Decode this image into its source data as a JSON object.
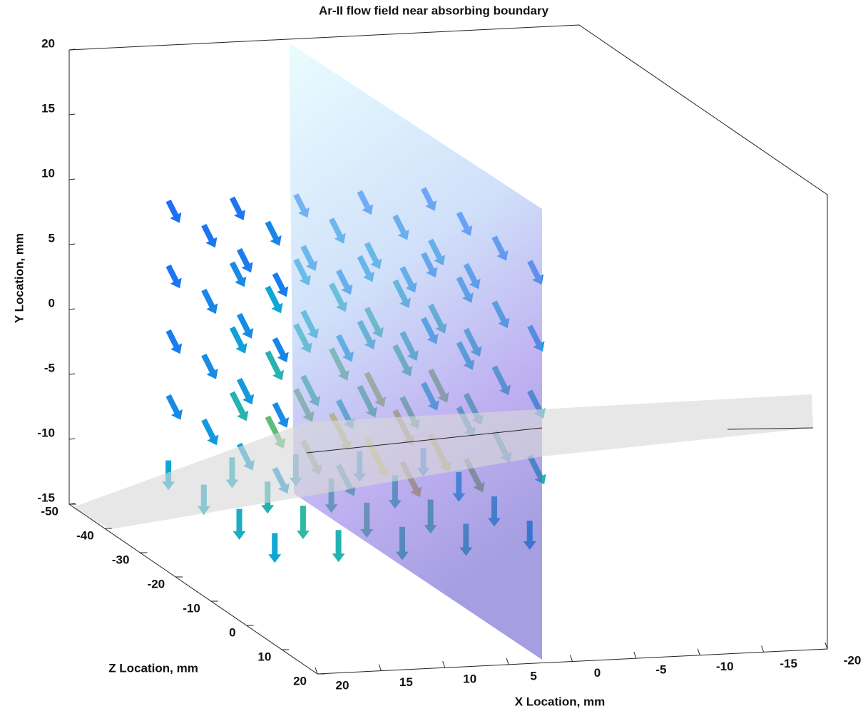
{
  "chart_data": {
    "type": "quiver3",
    "title": "Ar-II flow field near absorbing boundary",
    "x_label": "X Location, mm",
    "y_label": "Y Location, mm",
    "z_label": "Z Location, mm",
    "xlim": [
      -20,
      20
    ],
    "xticks": [
      -20,
      -15,
      -10,
      -5,
      0,
      5,
      10,
      15,
      20
    ],
    "x_reversed": true,
    "ylim": [
      -15,
      20
    ],
    "yticks": [
      -15,
      -10,
      -5,
      0,
      5,
      10,
      15,
      20
    ],
    "zlim": [
      -50,
      20
    ],
    "zticks": [
      -50,
      -40,
      -30,
      -20,
      -10,
      0,
      10,
      20
    ],
    "colormap": "parula",
    "grid_x": [
      15,
      10,
      5,
      0,
      -5
    ],
    "grid_y": [
      10,
      5,
      0,
      -5,
      -10
    ],
    "grid_z": [
      -40,
      -30,
      -20,
      -10
    ],
    "speed": [
      [
        [
          0.2,
          0.22,
          0.25,
          0.25,
          0.22
        ],
        [
          0.22,
          0.28,
          0.32,
          0.3,
          0.25
        ],
        [
          0.25,
          0.32,
          0.38,
          0.35,
          0.28
        ],
        [
          0.25,
          0.3,
          0.35,
          0.33,
          0.27
        ]
      ],
      [
        [
          0.22,
          0.3,
          0.38,
          0.36,
          0.3
        ],
        [
          0.28,
          0.4,
          0.48,
          0.45,
          0.35
        ],
        [
          0.3,
          0.45,
          0.55,
          0.5,
          0.4
        ],
        [
          0.28,
          0.4,
          0.5,
          0.45,
          0.36
        ]
      ],
      [
        [
          0.25,
          0.38,
          0.5,
          0.48,
          0.38
        ],
        [
          0.3,
          0.5,
          0.65,
          0.6,
          0.45
        ],
        [
          0.35,
          0.58,
          0.75,
          0.7,
          0.5
        ],
        [
          0.3,
          0.5,
          0.65,
          0.6,
          0.45
        ]
      ],
      [
        [
          0.3,
          0.5,
          0.68,
          0.62,
          0.45
        ],
        [
          0.35,
          0.65,
          0.88,
          0.8,
          0.55
        ],
        [
          0.4,
          0.75,
          1.0,
          0.9,
          0.6
        ],
        [
          0.35,
          0.6,
          0.8,
          0.72,
          0.5
        ]
      ],
      [
        [
          0.4,
          0.45,
          0.5,
          0.45,
          0.35
        ],
        [
          0.42,
          0.5,
          0.6,
          0.55,
          0.4
        ],
        [
          0.45,
          0.55,
          0.62,
          0.58,
          0.42
        ],
        [
          0.4,
          0.5,
          0.55,
          0.5,
          0.38
        ]
      ]
    ]
  }
}
